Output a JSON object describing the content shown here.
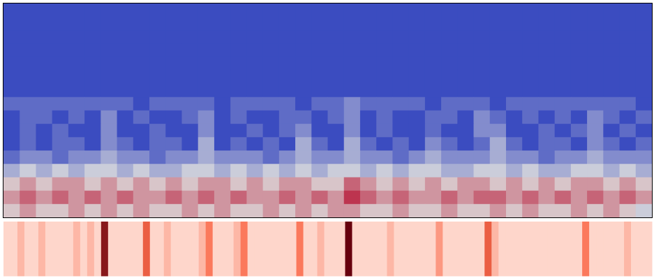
{
  "chart_data": [
    {
      "type": "heatmap",
      "zlim": [
        0,
        9
      ],
      "colorscale": [
        "#3b4cc0",
        "#dddddd",
        "#b40426"
      ],
      "z": [
        [
          0,
          0,
          0,
          0,
          0,
          0,
          0,
          0,
          0,
          0,
          0,
          0,
          0,
          0,
          0,
          0,
          0,
          0,
          0,
          0,
          0,
          0,
          0,
          0,
          0,
          0,
          0,
          0,
          0,
          0,
          0,
          0,
          0,
          0,
          0,
          0,
          0,
          0,
          0,
          0
        ],
        [
          0,
          0,
          0,
          0,
          0,
          0,
          0,
          0,
          0,
          0,
          0,
          0,
          0,
          0,
          0,
          0,
          0,
          0,
          0,
          0,
          0,
          0,
          0,
          0,
          0,
          0,
          0,
          0,
          0,
          0,
          0,
          0,
          0,
          0,
          0,
          0,
          0,
          0,
          0,
          0
        ],
        [
          0,
          0,
          0,
          0,
          0,
          0,
          0,
          0,
          0,
          0,
          0,
          0,
          0,
          0,
          0,
          0,
          0,
          0,
          0,
          0,
          0,
          0,
          0,
          0,
          0,
          0,
          0,
          0,
          0,
          0,
          0,
          0,
          0,
          0,
          0,
          0,
          0,
          0,
          0,
          0
        ],
        [
          0,
          0,
          0,
          0,
          0,
          0,
          0,
          0,
          0,
          0,
          0,
          0,
          0,
          0,
          0,
          0,
          0,
          0,
          0,
          0,
          0,
          0,
          0,
          0,
          0,
          0,
          0,
          0,
          0,
          0,
          0,
          0,
          0,
          0,
          0,
          0,
          0,
          0,
          0,
          0
        ],
        [
          0,
          0,
          0,
          0,
          0,
          0,
          0,
          0,
          0,
          0,
          0,
          0,
          0,
          0,
          0,
          0,
          0,
          0,
          0,
          0,
          0,
          0,
          0,
          0,
          0,
          0,
          0,
          0,
          0,
          0,
          0,
          0,
          0,
          0,
          0,
          0,
          0,
          0,
          0,
          0
        ],
        [
          0,
          0,
          0,
          0,
          0,
          0,
          0,
          0,
          0,
          0,
          0,
          0,
          0,
          0,
          0,
          0,
          0,
          0,
          0,
          0,
          0,
          0,
          0,
          0,
          0,
          0,
          0,
          0,
          0,
          0,
          0,
          0,
          0,
          0,
          0,
          0,
          0,
          0,
          0,
          0
        ],
        [
          0,
          0,
          0,
          0,
          0,
          0,
          0,
          0,
          0,
          0,
          0,
          0,
          0,
          0,
          0,
          0,
          0,
          0,
          0,
          0,
          0,
          0,
          0,
          0,
          0,
          0,
          0,
          0,
          0,
          0,
          0,
          0,
          0,
          0,
          0,
          0,
          0,
          0,
          0,
          0
        ],
        [
          1,
          1,
          1,
          1,
          1,
          1,
          1,
          1,
          0,
          1,
          1,
          1,
          1,
          0,
          1,
          1,
          1,
          1,
          0,
          1,
          1,
          2,
          1,
          1,
          1,
          1,
          0,
          1,
          1,
          1,
          0,
          1,
          1,
          1,
          1,
          1,
          1,
          1,
          1,
          0
        ],
        [
          0,
          1,
          1,
          0,
          1,
          0,
          2,
          0,
          1,
          0,
          0,
          1,
          2,
          0,
          1,
          0,
          0,
          1,
          1,
          0,
          1,
          2,
          0,
          1,
          0,
          0,
          1,
          1,
          0,
          2,
          1,
          0,
          1,
          0,
          1,
          0,
          2,
          1,
          0,
          1
        ],
        [
          0,
          1,
          0,
          1,
          0,
          0,
          2,
          0,
          0,
          1,
          0,
          0,
          2,
          0,
          0,
          1,
          0,
          1,
          2,
          0,
          0,
          2,
          0,
          1,
          0,
          0,
          1,
          0,
          0,
          2,
          2,
          0,
          0,
          1,
          0,
          1,
          2,
          0,
          1,
          0
        ],
        [
          0,
          1,
          0,
          1,
          1,
          0,
          2,
          1,
          0,
          1,
          1,
          0,
          3,
          0,
          1,
          0,
          1,
          0,
          3,
          1,
          0,
          3,
          1,
          0,
          1,
          0,
          2,
          1,
          0,
          1,
          3,
          1,
          0,
          1,
          1,
          0,
          2,
          1,
          0,
          1
        ],
        [
          1,
          2,
          2,
          1,
          2,
          2,
          3,
          2,
          2,
          1,
          2,
          2,
          3,
          2,
          2,
          2,
          1,
          2,
          3,
          2,
          2,
          3,
          2,
          2,
          1,
          2,
          3,
          2,
          2,
          2,
          3,
          2,
          2,
          1,
          2,
          2,
          3,
          2,
          2,
          2
        ],
        [
          3,
          4,
          3,
          4,
          3,
          4,
          4,
          3,
          4,
          3,
          3,
          4,
          4,
          3,
          4,
          3,
          4,
          3,
          4,
          3,
          4,
          4,
          3,
          4,
          3,
          4,
          4,
          3,
          3,
          4,
          4,
          3,
          4,
          3,
          3,
          4,
          4,
          3,
          4,
          3
        ],
        [
          5,
          6,
          5,
          6,
          6,
          5,
          6,
          5,
          6,
          5,
          6,
          5,
          6,
          6,
          5,
          6,
          5,
          6,
          6,
          5,
          5,
          7,
          6,
          5,
          6,
          5,
          6,
          5,
          6,
          6,
          5,
          6,
          5,
          6,
          5,
          6,
          6,
          5,
          6,
          5
        ],
        [
          6,
          7,
          6,
          7,
          6,
          7,
          6,
          7,
          6,
          6,
          7,
          6,
          7,
          6,
          7,
          6,
          6,
          7,
          6,
          7,
          6,
          8,
          7,
          6,
          7,
          6,
          6,
          7,
          6,
          7,
          7,
          6,
          7,
          6,
          7,
          6,
          7,
          6,
          7,
          6
        ],
        [
          5,
          6,
          5,
          5,
          6,
          5,
          6,
          5,
          6,
          5,
          5,
          6,
          5,
          6,
          5,
          5,
          6,
          5,
          6,
          5,
          6,
          6,
          5,
          5,
          6,
          5,
          5,
          6,
          5,
          5,
          6,
          5,
          6,
          5,
          5,
          6,
          5,
          6,
          5,
          4
        ]
      ]
    },
    {
      "type": "heatmap",
      "zlim": [
        0,
        9
      ],
      "colorscale": [
        "#fff5f0",
        "#fb6a4a",
        "#67000d"
      ],
      "z": [
        [
          1,
          1,
          2,
          1,
          1,
          2,
          1,
          1,
          1,
          1,
          2,
          1,
          2,
          1,
          8,
          1,
          1,
          1,
          1,
          1,
          5,
          1,
          1,
          2,
          1,
          1,
          1,
          1,
          2,
          4,
          1,
          1,
          1,
          2,
          4,
          1,
          1,
          1,
          1,
          1,
          1,
          1,
          4,
          1,
          1,
          2,
          1,
          1,
          1,
          9,
          1,
          1,
          1,
          1,
          1,
          2,
          1,
          1,
          1,
          1,
          1,
          1,
          3,
          1,
          1,
          1,
          1,
          1,
          1,
          5,
          2,
          1,
          1,
          1,
          1,
          1,
          1,
          1,
          1,
          1,
          1,
          1,
          1,
          4,
          1,
          1,
          1,
          1,
          1,
          2,
          1,
          1,
          1
        ]
      ]
    }
  ]
}
